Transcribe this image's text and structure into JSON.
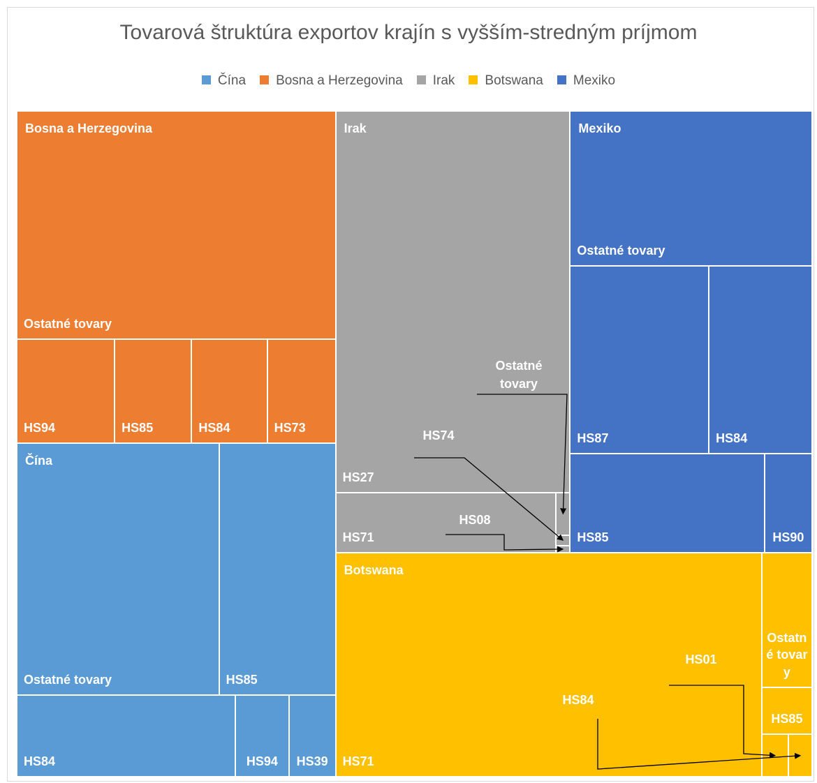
{
  "chart_data": {
    "type": "treemap",
    "title": "Tovarová štruktúra exportov krajín s vyšším-stredným príjmom",
    "legend": "top",
    "series": [
      {
        "name": "Čína",
        "color": "#5b9bd5",
        "categories": [
          "Ostatné tovary",
          "HS85",
          "HS84",
          "HS94",
          "HS39"
        ],
        "values": [
          103,
          59.4,
          36,
          8.8,
          7.7
        ]
      },
      {
        "name": "Bosna a Herzegovina",
        "color": "#ed7d31",
        "categories": [
          "Ostatné tovary",
          "HS94",
          "HS85",
          "HS84",
          "HS73"
        ],
        "values": [
          147,
          20.6,
          16.2,
          15.9,
          14.4
        ]
      },
      {
        "name": "Irak",
        "color": "#a5a5a5",
        "categories": [
          "HS27",
          "HS71",
          "Ostatné tovary",
          "HS74",
          "HS08"
        ],
        "values": [
          181,
          26.6,
          1.2,
          0.3,
          0.2
        ]
      },
      {
        "name": "Botswana",
        "color": "#ffc000",
        "categories": [
          "HS71",
          "Ostatné tovary",
          "HS85",
          "HS01",
          "HS84"
        ],
        "values": [
          193,
          13.7,
          4.8,
          2.3,
          2.0
        ]
      },
      {
        "name": "Mexiko",
        "color": "#4472c4",
        "categories": [
          "Ostatné tovary",
          "HS87",
          "HS84",
          "HS85",
          "HS90"
        ],
        "values": [
          75.8,
          52.7,
          39.2,
          38.8,
          9.5
        ]
      }
    ]
  }
}
